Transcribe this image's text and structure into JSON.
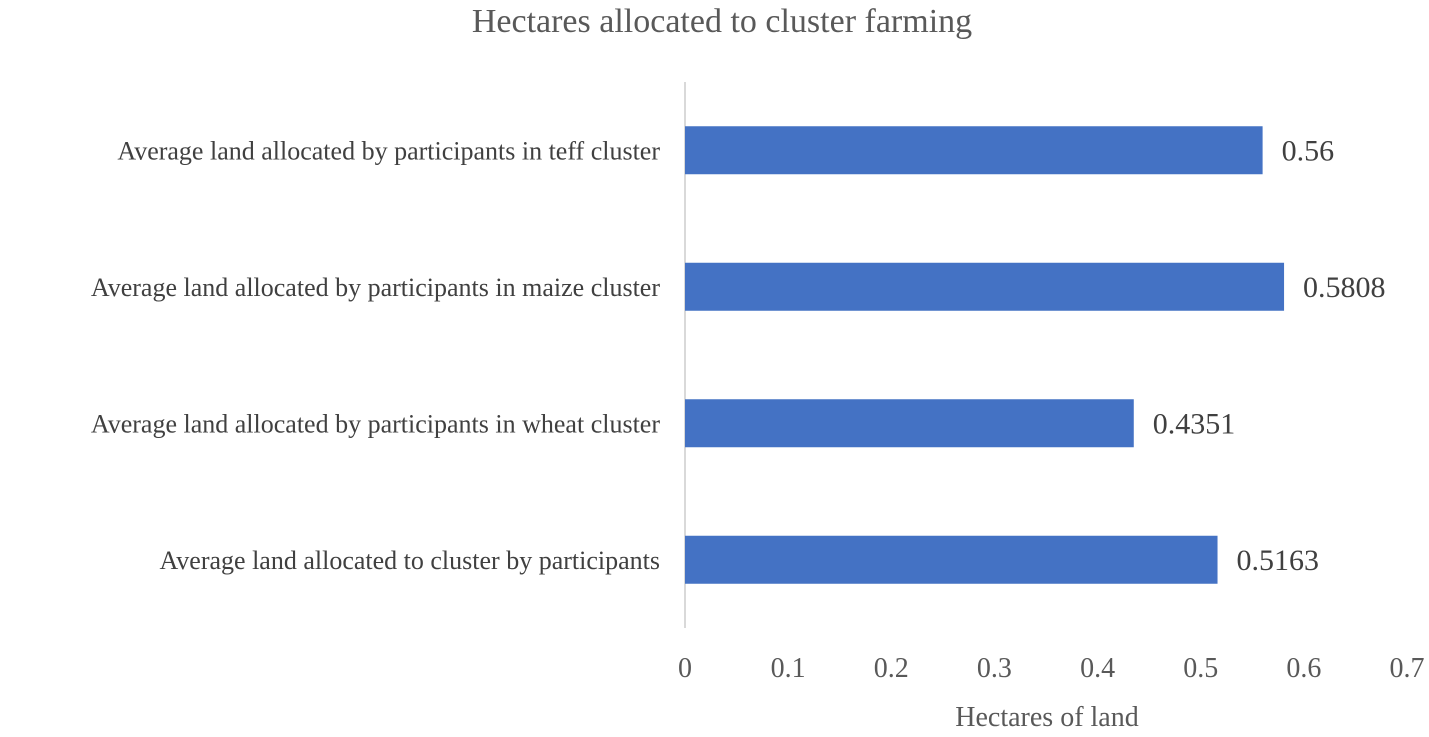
{
  "chart_data": {
    "type": "bar",
    "orientation": "horizontal",
    "title": "Hectares allocated to cluster farming",
    "xlabel": "Hectares of land",
    "ylabel": "",
    "categories": [
      "Average land allocated by participants in teff cluster",
      "Average land allocated by participants in maize cluster",
      "Average land allocated by participants in wheat cluster",
      "Average land allocated to cluster by participants"
    ],
    "values": [
      0.56,
      0.5808,
      0.4351,
      0.5163
    ],
    "value_labels": [
      "0.56",
      "0.5808",
      "0.4351",
      "0.5163"
    ],
    "xlim": [
      0,
      0.7
    ],
    "x_ticks": [
      "0",
      "0.1",
      "0.2",
      "0.3",
      "0.4",
      "0.5",
      "0.6",
      "0.7"
    ],
    "grid": false,
    "legend": "none",
    "bar_color": "#4472C4",
    "axis_color": "#D9D9D9"
  }
}
